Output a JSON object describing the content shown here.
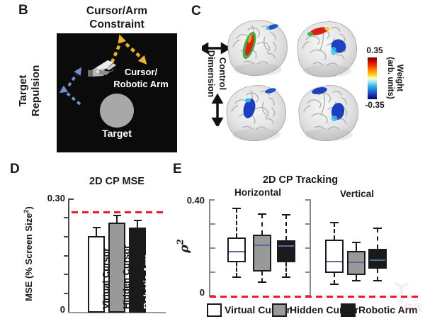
{
  "figure": {
    "background": "#FFFFFF",
    "watermark": "亿欧"
  },
  "panel_b": {
    "label": "B",
    "title": [
      "Cursor/Arm",
      "Constraint"
    ],
    "side_label": [
      "Target",
      "Repulsion"
    ],
    "cursor_label": [
      "Cursor/",
      "Robotic Arm"
    ],
    "target_label": "Target",
    "colors": {
      "arena_bg": "#0B0B0B",
      "constraint_arrow": "#F0B02E",
      "repulsion_arrow": "#6E8FCB",
      "target_circle": "#A8A8A8"
    }
  },
  "panel_c": {
    "label": "C",
    "side_label": [
      "Control",
      "Dimension"
    ],
    "colorbar": {
      "top_label": "0.35",
      "bottom_label": "-0.35",
      "title_line1": "Weight",
      "title_line2": "(arb. units)"
    }
  },
  "panel_d": {
    "label": "D",
    "title": "2D CP MSE",
    "ylabel_prefix": "MSE (% Screen Size",
    "ylabel_sup": "2",
    "ylabel_suffix": ")",
    "ymax_label": "0.30",
    "ymin_label": "0"
  },
  "panel_e": {
    "label": "E",
    "title": "2D CP Tracking",
    "subtitle_left": "Horizontal",
    "subtitle_right": "Vertical",
    "ylabel_base": "ρ",
    "ylabel_sup": "2",
    "ymax_label": "0.40",
    "ymin_label": "0"
  },
  "legend": [
    {
      "label": "Virtual Cursor",
      "color": "#FFFFFF"
    },
    {
      "label": "Hidden Cursor",
      "color": "#999999"
    },
    {
      "label": "Robotic Arm",
      "color": "#1A1A1A"
    }
  ],
  "chart_data": [
    {
      "type": "bar",
      "title": "2D CP MSE",
      "ylabel": "MSE (% Screen Size²)",
      "categories": [
        "Virtual Cursor",
        "Hidden Cursor",
        "Robotic Arm"
      ],
      "values": [
        0.201,
        0.237,
        0.223
      ],
      "errors_upper": [
        0.022,
        0.019,
        0.02
      ],
      "ylim": [
        0,
        0.3
      ],
      "yticks": [
        0.05,
        0.1,
        0.15,
        0.2,
        0.25
      ],
      "ytick_labels_shown": [
        "0.30",
        "0"
      ],
      "reference_line": {
        "value": 0.264,
        "style": "dashed",
        "color": "#ED1C24"
      },
      "bar_colors": [
        "#FFFFFF",
        "#999999",
        "#1A1A1A"
      ],
      "label_colors": [
        "#111111",
        "#111111",
        "#FFFFFF"
      ],
      "grid": false
    },
    {
      "type": "boxplot",
      "title": "2D CP Tracking",
      "ylabel": "ρ²",
      "ylim": [
        0,
        0.4
      ],
      "yticks": [
        0.1,
        0.2,
        0.3
      ],
      "ytick_labels_shown": [
        "0.40",
        "0"
      ],
      "median_color": "#5A6AA5",
      "reference_line": {
        "value": 0.0,
        "style": "dashed",
        "color": "#ED1C24"
      },
      "subpanels": [
        {
          "label": "Horizontal",
          "series": [
            {
              "name": "Virtual Cursor",
              "whisker_low": 0.078,
              "q1": 0.141,
              "median": 0.185,
              "q3": 0.244,
              "whisker_high": 0.366
            },
            {
              "name": "Hidden Cursor",
              "whisker_low": 0.059,
              "q1": 0.102,
              "median": 0.212,
              "q3": 0.257,
              "whisker_high": 0.341
            },
            {
              "name": "Robotic Arm",
              "whisker_low": 0.078,
              "q1": 0.141,
              "median": 0.208,
              "q3": 0.231,
              "whisker_high": 0.337
            }
          ]
        },
        {
          "label": "Vertical",
          "series": [
            {
              "name": "Virtual Cursor",
              "whisker_low": 0.049,
              "q1": 0.096,
              "median": 0.145,
              "q3": 0.235,
              "whisker_high": 0.307
            },
            {
              "name": "Hidden Cursor",
              "whisker_low": 0.064,
              "q1": 0.089,
              "median": 0.14,
              "q3": 0.187,
              "whisker_high": 0.224
            },
            {
              "name": "Robotic Arm",
              "whisker_low": 0.064,
              "q1": 0.116,
              "median": 0.15,
              "q3": 0.196,
              "whisker_high": 0.282
            }
          ]
        }
      ],
      "legend": [
        "Virtual Cursor",
        "Hidden Cursor",
        "Robotic Arm"
      ],
      "legend_position": "bottom"
    }
  ]
}
